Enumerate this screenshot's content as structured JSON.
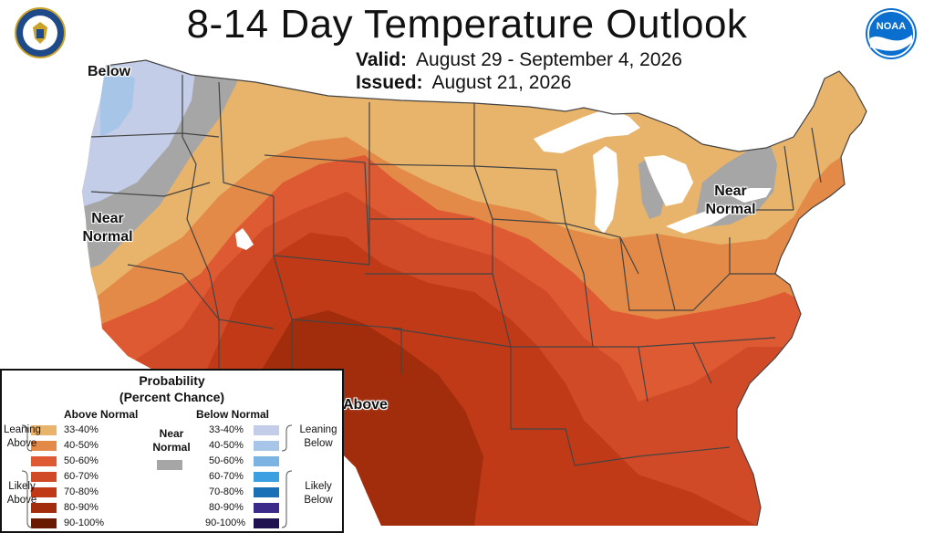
{
  "header": {
    "title": "8-14 Day Temperature Outlook",
    "valid_label": "Valid:",
    "valid_value": "August 29 - September 4, 2026",
    "issued_label": "Issued:",
    "issued_value": "August 21, 2026"
  },
  "logos": {
    "left": "Department of Commerce seal",
    "right": "NOAA logo",
    "right_text": "NOAA"
  },
  "map_labels": {
    "below": "Below",
    "near_normal_west_1": "Near",
    "near_normal_west_2": "Normal",
    "near_normal_east_1": "Near",
    "near_normal_east_2": "Normal",
    "above": "Above"
  },
  "colors": {
    "above_33_40": "#E8B36A",
    "above_40_50": "#E38A48",
    "above_50_60": "#DE5A32",
    "above_60_70": "#D04A27",
    "above_70_80": "#C03A18",
    "above_80_90": "#A12D0D",
    "above_90_100": "#6A1A00",
    "near_normal": "#A6A6A6",
    "below_33_40": "#C3CDE8",
    "below_40_50": "#A7C5E6",
    "below_50_60": "#7BB3E2",
    "below_60_70": "#3C9FE0",
    "below_70_80": "#1970B7",
    "below_80_90": "#3B2A8A",
    "below_90_100": "#20124F",
    "water": "#ffffff",
    "border": "#444444"
  },
  "legend": {
    "title_1": "Probability",
    "title_2": "(Percent Chance)",
    "above_header": "Above Normal",
    "below_header": "Below Normal",
    "near_1": "Near",
    "near_2": "Normal",
    "leaning_above_1": "Leaning",
    "leaning_above_2": "Above",
    "likely_above_1": "Likely",
    "likely_above_2": "Above",
    "leaning_below_1": "Leaning",
    "leaning_below_2": "Below",
    "likely_below_1": "Likely",
    "likely_below_2": "Below",
    "above_rows": [
      "33-40%",
      "40-50%",
      "50-60%",
      "60-70%",
      "70-80%",
      "80-90%",
      "90-100%"
    ],
    "below_rows": [
      "33-40%",
      "40-50%",
      "50-60%",
      "60-70%",
      "70-80%",
      "80-90%",
      "90-100%"
    ]
  }
}
